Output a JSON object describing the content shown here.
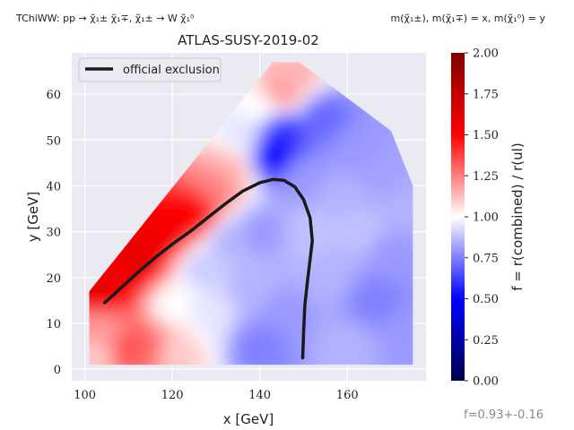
{
  "header": {
    "left": "TChiWW: pp → χ̃₁± χ̃₁∓, χ̃₁± → W χ̃₁⁰",
    "right": "m(χ̃₁±), m(χ̃₁∓) = x, m(χ̃₁⁰) = y",
    "footer": "f=0.93+-0.16"
  },
  "chart_data": {
    "type": "heatmap",
    "title": "ATLAS-SUSY-2019-02",
    "xlabel": "x [GeV]",
    "ylabel": "y [GeV]",
    "xlim": [
      97,
      178
    ],
    "ylim": [
      -2.5,
      69
    ],
    "xticks": [
      100,
      120,
      140,
      160
    ],
    "yticks": [
      0,
      10,
      20,
      30,
      40,
      50,
      60
    ],
    "grid": true,
    "legend": {
      "position": "top-left",
      "entries": [
        "official exclusion"
      ]
    },
    "colorbar": {
      "label": "f = r(combined) / r(ul)",
      "range": [
        0,
        2
      ],
      "ticks": [
        "0.00",
        "0.25",
        "0.50",
        "0.75",
        "1.00",
        "1.25",
        "1.50",
        "1.75",
        "2.00"
      ],
      "colormap": "seismic",
      "colors": {
        "low": "#00004c",
        "mid_low": "#0000ff",
        "mid": "#ffffff",
        "mid_high": "#ff0000",
        "high": "#800000"
      }
    },
    "region": [
      [
        101,
        1
      ],
      [
        101,
        17
      ],
      [
        143,
        67
      ],
      [
        149,
        67
      ],
      [
        170,
        52
      ],
      [
        175,
        40
      ],
      [
        175,
        1
      ]
    ],
    "points": [
      [
        102,
        3,
        1.1
      ],
      [
        102,
        10,
        1.2
      ],
      [
        102,
        16,
        1.6
      ],
      [
        105,
        8,
        1.2
      ],
      [
        106,
        19,
        1.55
      ],
      [
        110,
        5,
        1.35
      ],
      [
        112,
        24,
        1.6
      ],
      [
        115,
        5,
        1.3
      ],
      [
        118,
        30,
        1.55
      ],
      [
        120,
        4,
        1.1
      ],
      [
        120,
        14,
        1.0
      ],
      [
        125,
        34,
        1.5
      ],
      [
        127,
        22,
        0.9
      ],
      [
        128,
        12,
        0.95
      ],
      [
        130,
        40,
        1.25
      ],
      [
        133,
        44,
        1.15
      ],
      [
        133,
        28,
        0.85
      ],
      [
        136,
        50,
        0.95
      ],
      [
        138,
        18,
        0.85
      ],
      [
        140,
        5,
        0.75
      ],
      [
        140,
        57,
        1.0
      ],
      [
        140,
        30,
        0.8
      ],
      [
        143,
        47,
        0.5
      ],
      [
        145,
        60,
        1.2
      ],
      [
        145,
        52,
        0.6
      ],
      [
        146,
        12,
        0.8
      ],
      [
        148,
        64,
        1.15
      ],
      [
        150,
        42,
        0.8
      ],
      [
        152,
        30,
        0.88
      ],
      [
        154,
        55,
        0.7
      ],
      [
        156,
        20,
        0.85
      ],
      [
        158,
        38,
        0.85
      ],
      [
        160,
        5,
        0.85
      ],
      [
        162,
        48,
        0.8
      ],
      [
        163,
        30,
        0.88
      ],
      [
        166,
        15,
        0.75
      ],
      [
        168,
        42,
        0.82
      ],
      [
        170,
        25,
        0.8
      ],
      [
        173,
        8,
        0.8
      ],
      [
        174,
        35,
        0.85
      ]
    ],
    "exclusion_line": [
      [
        104.5,
        14.5
      ],
      [
        108,
        17.5
      ],
      [
        112,
        21
      ],
      [
        116,
        24.3
      ],
      [
        120,
        27.3
      ],
      [
        124,
        30
      ],
      [
        128,
        33
      ],
      [
        132,
        36
      ],
      [
        136,
        38.8
      ],
      [
        140,
        40.7
      ],
      [
        143,
        41.4
      ],
      [
        145.5,
        41.2
      ],
      [
        148,
        39.8
      ],
      [
        150,
        37
      ],
      [
        151.5,
        33
      ],
      [
        152,
        28
      ],
      [
        151.5,
        24
      ],
      [
        151,
        20
      ],
      [
        150.3,
        14
      ],
      [
        150,
        8
      ],
      [
        149.8,
        2.5
      ]
    ]
  }
}
